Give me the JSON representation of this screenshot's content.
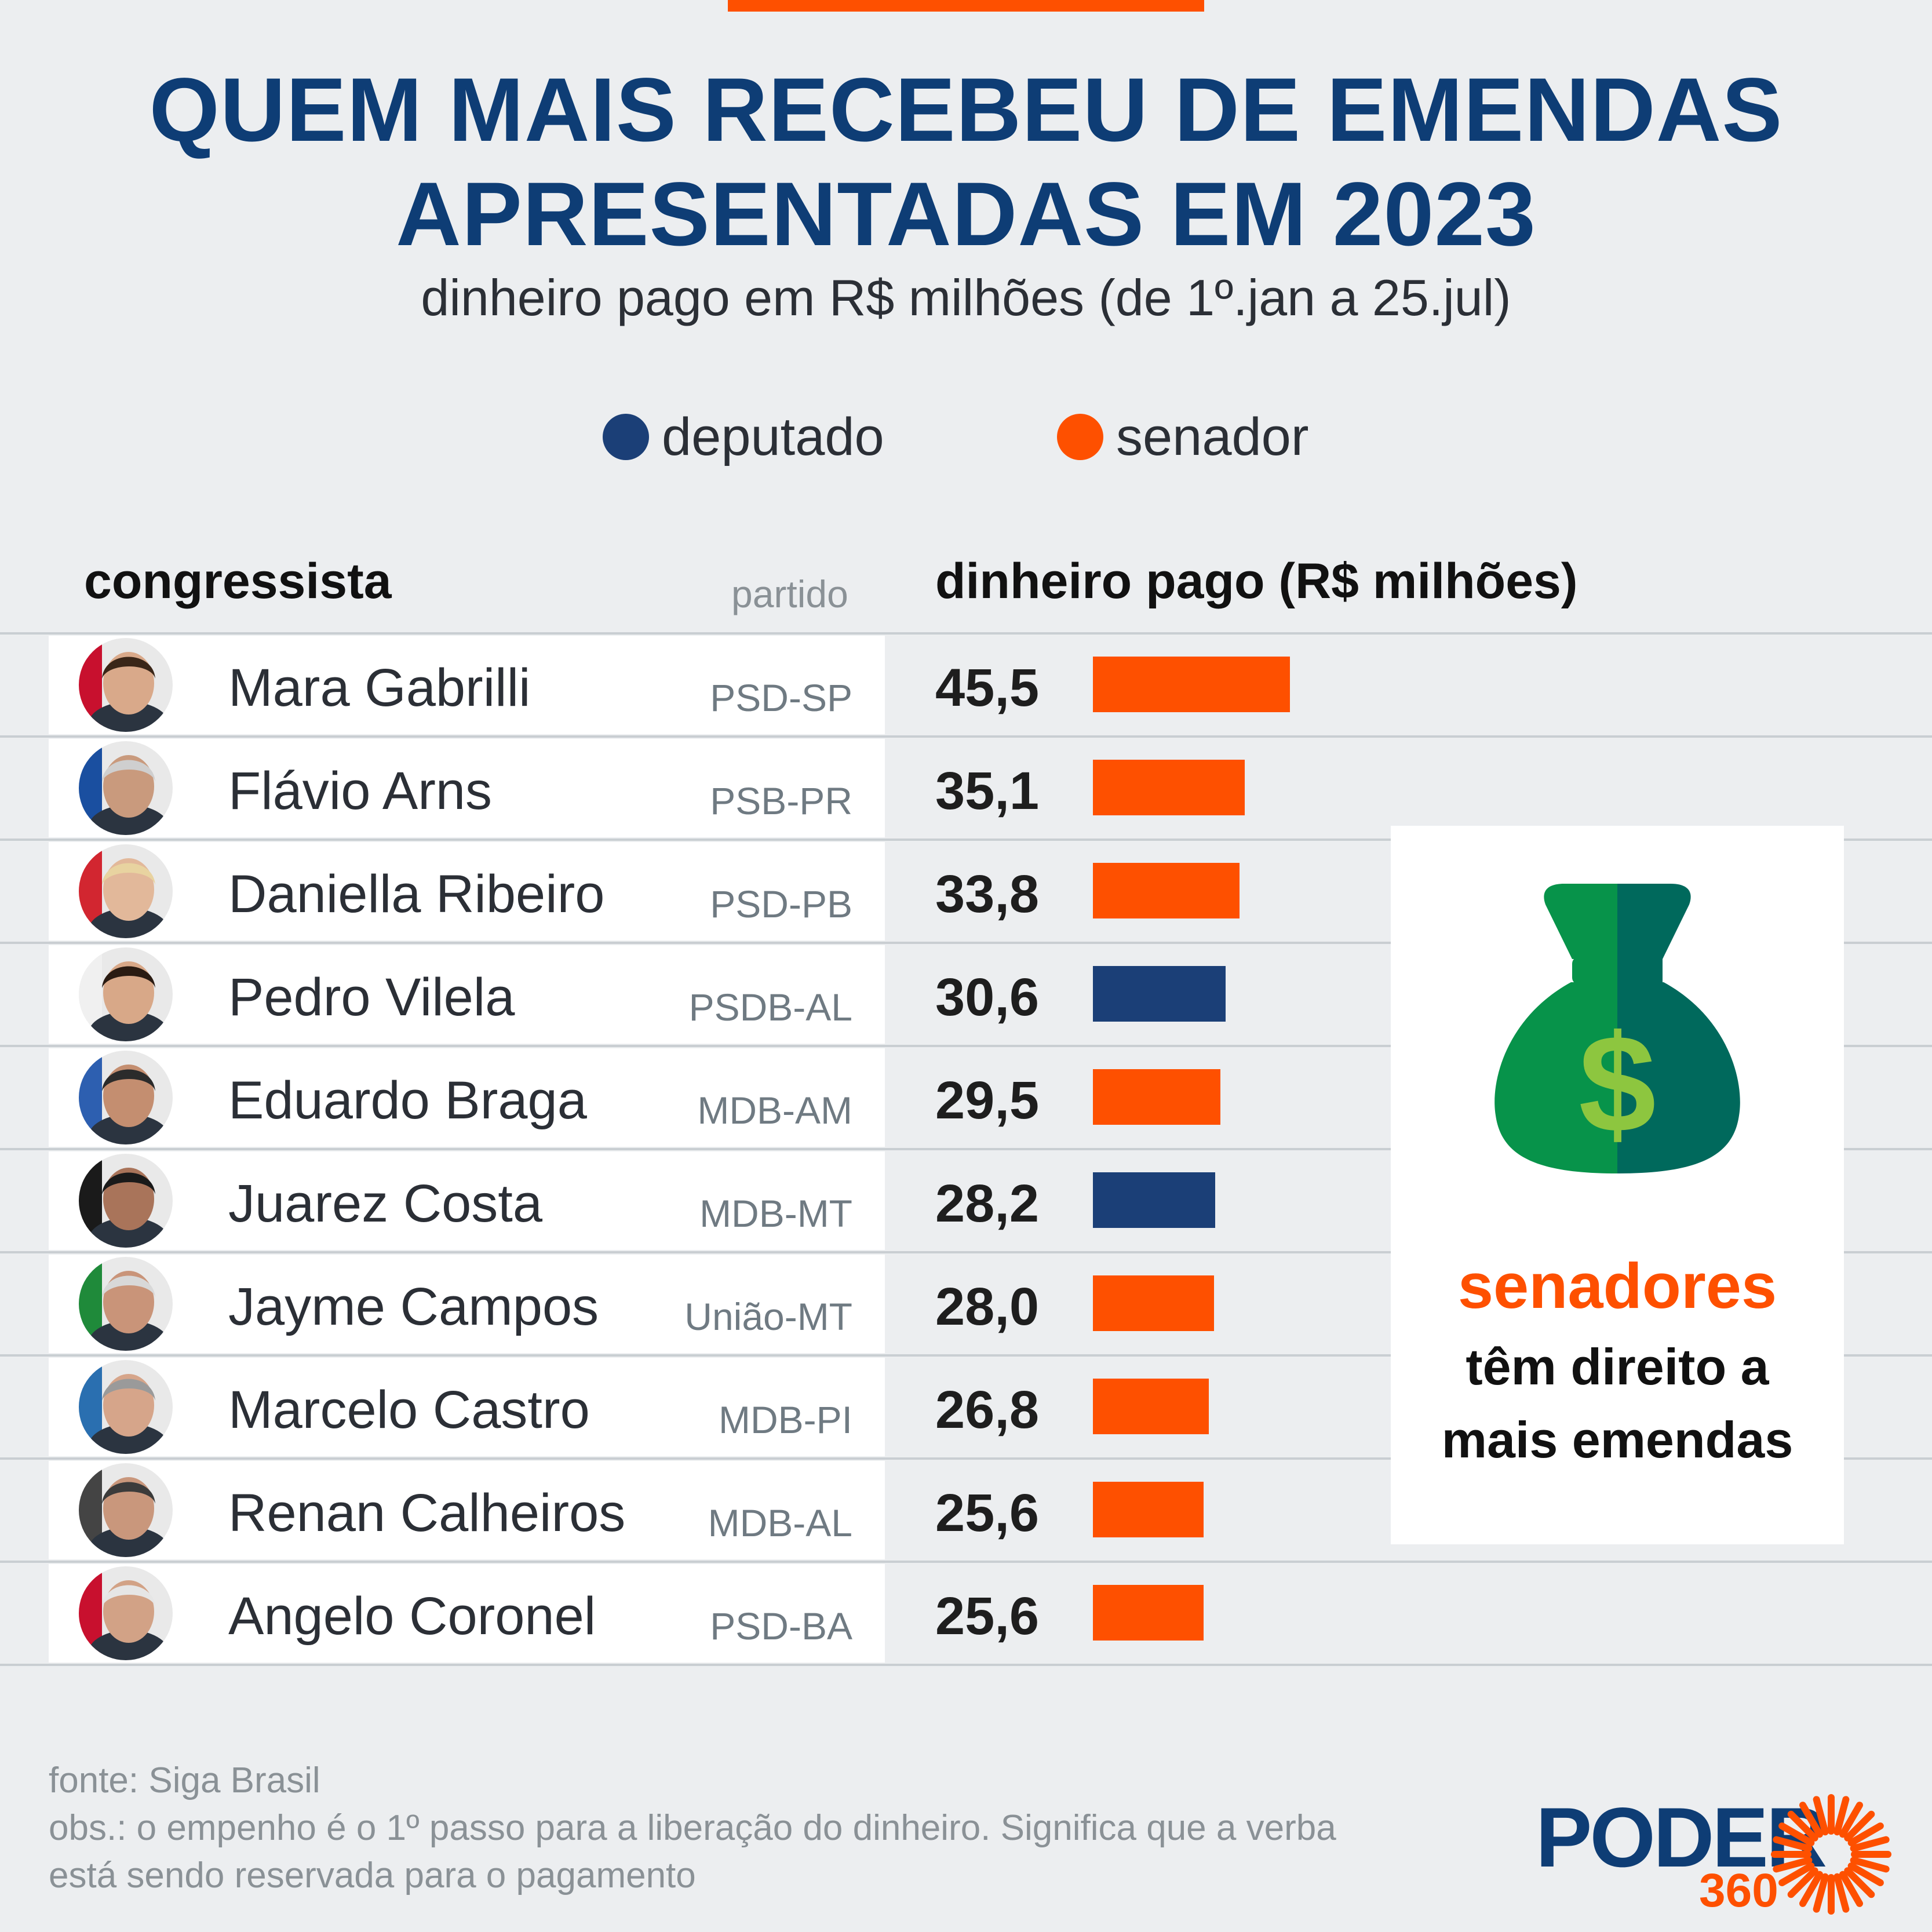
{
  "title_line1": "QUEM MAIS RECEBEU DE EMENDAS",
  "title_line2": "APRESENTADAS EM 2023",
  "subtitle": "dinheiro pago em R$ milhões (de 1º.jan a 25.jul)",
  "legend": [
    {
      "label": "deputado",
      "color": "#1b3f77"
    },
    {
      "label": "senador",
      "color": "#fe5000"
    }
  ],
  "headers": {
    "congressista": "congressista",
    "partido": "partido",
    "dinheiro": "dinheiro pago (R$ milhões)"
  },
  "chart_data": {
    "type": "bar",
    "title": "QUEM MAIS RECEBEU DE EMENDAS APRESENTADAS EM 2023",
    "subtitle": "dinheiro pago em R$ milhões (de 1º.jan a 25.jul)",
    "value_label": "dinheiro pago (R$ milhões)",
    "categories": [
      "Mara Gabrilli",
      "Flávio Arns",
      "Daniella Ribeiro",
      "Pedro Vilela",
      "Eduardo Braga",
      "Juarez Costa",
      "Jayme Campos",
      "Marcelo Castro",
      "Renan Calheiros",
      "Angelo Coronel"
    ],
    "parties": [
      "PSD-SP",
      "PSB-PR",
      "PSD-PB",
      "PSDB-AL",
      "MDB-AM",
      "MDB-MT",
      "União-MT",
      "MDB-PI",
      "MDB-AL",
      "PSD-BA"
    ],
    "roles": [
      "senador",
      "senador",
      "senador",
      "deputado",
      "senador",
      "deputado",
      "senador",
      "senador",
      "senador",
      "senador"
    ],
    "values": [
      45.5,
      35.1,
      33.8,
      30.6,
      29.5,
      28.2,
      28.0,
      26.8,
      25.6,
      25.6
    ],
    "value_labels": [
      "45,5",
      "35,1",
      "33,8",
      "30,6",
      "29,5",
      "28,2",
      "28,0",
      "26,8",
      "25,6",
      "25,6"
    ],
    "colors": {
      "deputado": "#1b3f77",
      "senador": "#fe5000"
    }
  },
  "note": {
    "icon": "money-bag-icon",
    "highlight": "senadores",
    "line1": "têm direito a",
    "line2": "mais emendas"
  },
  "footer": {
    "source": "fonte: Siga Brasil",
    "obs1": "obs.: o empenho é o 1º passo para a liberação do dinheiro. Significa que a verba",
    "obs2": "está sendo reservada para o pagamento"
  },
  "logo": {
    "word": "PODER",
    "number": "360"
  }
}
